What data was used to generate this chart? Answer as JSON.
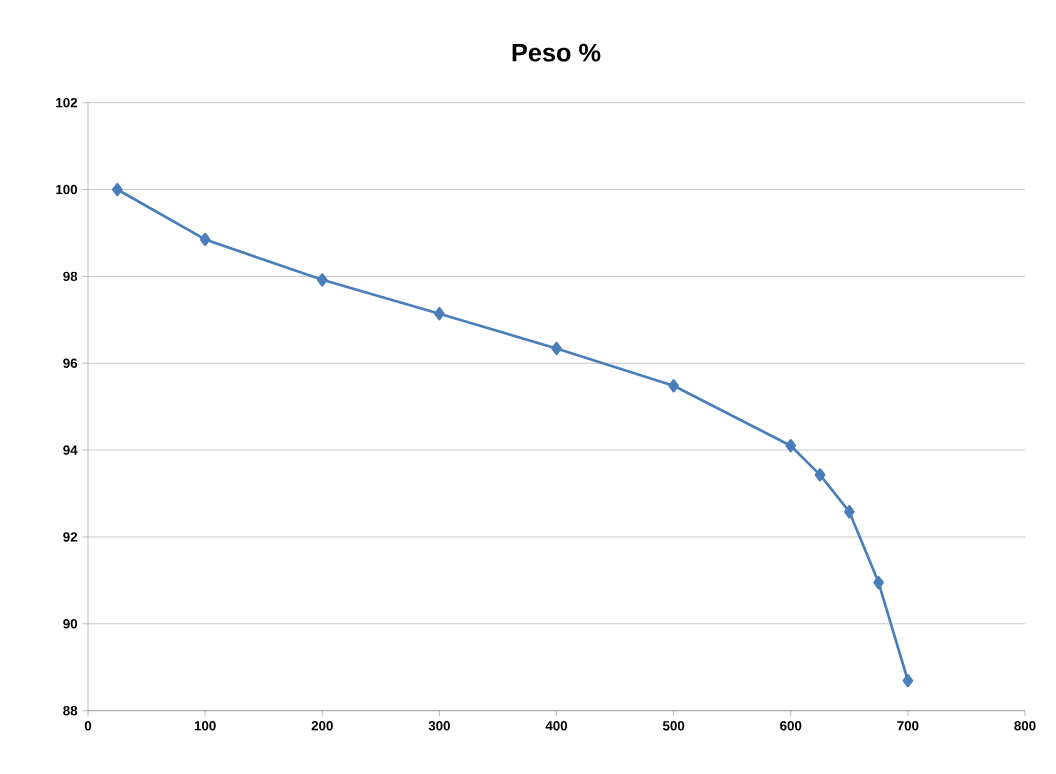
{
  "chart_data": {
    "type": "line",
    "title": "Peso %",
    "x": [
      25,
      100,
      200,
      300,
      400,
      500,
      600,
      625,
      650,
      675,
      700
    ],
    "series": [
      {
        "color": "#4a7ebb",
        "values": [
          100.0,
          98.85,
          97.92,
          97.14,
          96.34,
          95.48,
          94.1,
          93.43,
          92.58,
          90.95,
          88.69
        ]
      }
    ],
    "xlim": [
      0,
      800
    ],
    "xticks": [
      0,
      100,
      200,
      300,
      400,
      500,
      600,
      700,
      800
    ],
    "ylim": [
      88,
      102
    ],
    "yticks": [
      88,
      90,
      92,
      94,
      96,
      98,
      100,
      102
    ],
    "grid": "y",
    "marker": "diamond",
    "line_style": "solid"
  }
}
